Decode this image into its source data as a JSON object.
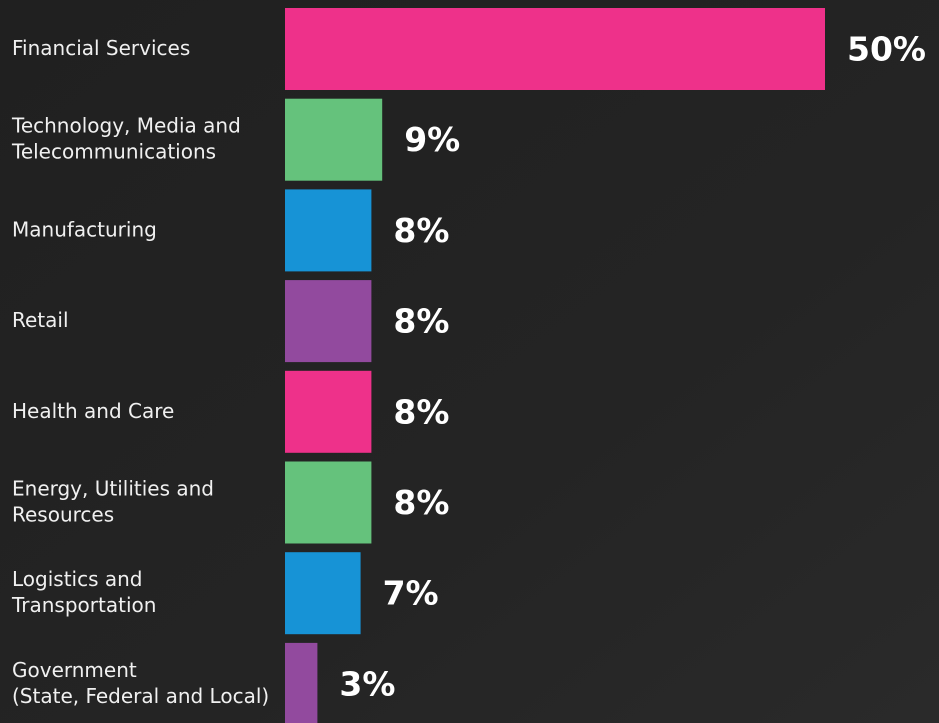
{
  "chart_data": {
    "type": "bar",
    "orientation": "horizontal",
    "categories": [
      [
        "Financial Services"
      ],
      [
        "Technology, Media and",
        "Telecommunications"
      ],
      [
        "Manufacturing"
      ],
      [
        "Retail"
      ],
      [
        "Health and Care"
      ],
      [
        "Energy, Utilities and",
        "Resources"
      ],
      [
        "Logistics and",
        "Transportation"
      ],
      [
        "Government",
        "(State, Federal and Local)"
      ]
    ],
    "values": [
      50,
      9,
      8,
      8,
      8,
      8,
      7,
      3
    ],
    "value_labels": [
      "50%",
      "9%",
      "8%",
      "8%",
      "8%",
      "8%",
      "7%",
      "3%"
    ],
    "colors": [
      "#ee318a",
      "#65c27c",
      "#1793d6",
      "#924a9e",
      "#ee318a",
      "#65c27c",
      "#1793d6",
      "#924a9e"
    ],
    "xlim": [
      0,
      50
    ]
  }
}
